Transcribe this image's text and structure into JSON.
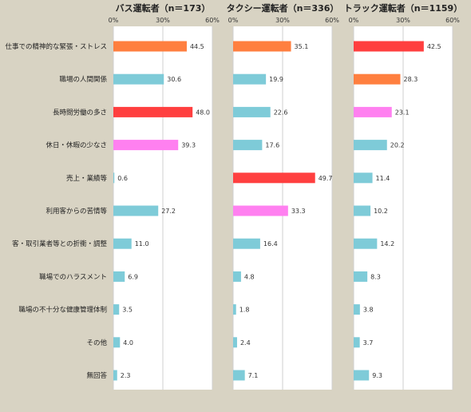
{
  "chart_data": {
    "type": "bar",
    "orientation": "horizontal",
    "categories": [
      "仕事での精神的な緊張・ストレス",
      "職場の人間関係",
      "長時間労働の多さ",
      "休日・休暇の少なさ",
      "売上・業績等",
      "利用客からの苦情等",
      "客・取引業者等との折衝・調整",
      "職場でのハラスメント",
      "職場の不十分な健康管理体制",
      "その他",
      "無回答"
    ],
    "xlim": [
      0,
      60
    ],
    "ticks": [
      "0%",
      "30%",
      "60%"
    ],
    "grid": true,
    "panels": [
      {
        "title": "バス運転者（n＝173）",
        "values": [
          44.5,
          30.6,
          48.0,
          39.3,
          0.6,
          27.2,
          11.0,
          6.9,
          3.5,
          4.0,
          2.3
        ],
        "labels": [
          "44.5",
          "30.6",
          "48.0",
          "39.3",
          "0.6",
          "27.2",
          "11.0",
          "6.9",
          "3.5",
          "4.0",
          "2.3"
        ],
        "colors": [
          "#ff7f3f",
          "#7ecbd8",
          "#ff3f3f",
          "#ff80f0",
          "#7ecbd8",
          "#7ecbd8",
          "#7ecbd8",
          "#7ecbd8",
          "#7ecbd8",
          "#7ecbd8",
          "#7ecbd8"
        ]
      },
      {
        "title": "タクシー運転者（n＝336）",
        "values": [
          35.1,
          19.9,
          22.6,
          17.6,
          49.7,
          33.3,
          16.4,
          4.8,
          1.8,
          2.4,
          7.1
        ],
        "labels": [
          "35.1",
          "19.9",
          "22.6",
          "17.6",
          "49.7",
          "33.3",
          "16.4",
          "4.8",
          "1.8",
          "2.4",
          "7.1"
        ],
        "colors": [
          "#ff7f3f",
          "#7ecbd8",
          "#7ecbd8",
          "#7ecbd8",
          "#ff3f3f",
          "#ff80f0",
          "#7ecbd8",
          "#7ecbd8",
          "#7ecbd8",
          "#7ecbd8",
          "#7ecbd8"
        ]
      },
      {
        "title": "トラック運転者（n＝1159）",
        "values": [
          42.5,
          28.3,
          23.1,
          20.2,
          11.4,
          10.2,
          14.2,
          8.3,
          3.8,
          3.7,
          9.3
        ],
        "labels": [
          "42.5",
          "28.3",
          "23.1",
          "20.2",
          "11.4",
          "10.2",
          "14.2",
          "8.3",
          "3.8",
          "3.7",
          "9.3"
        ],
        "colors": [
          "#ff3f3f",
          "#ff7f3f",
          "#ff80f0",
          "#7ecbd8",
          "#7ecbd8",
          "#7ecbd8",
          "#7ecbd8",
          "#7ecbd8",
          "#7ecbd8",
          "#7ecbd8",
          "#7ecbd8"
        ]
      }
    ],
    "colors": {
      "background": "#d8d3c3",
      "panel": "#ffffff",
      "gridline": "#cfcfcf"
    }
  }
}
